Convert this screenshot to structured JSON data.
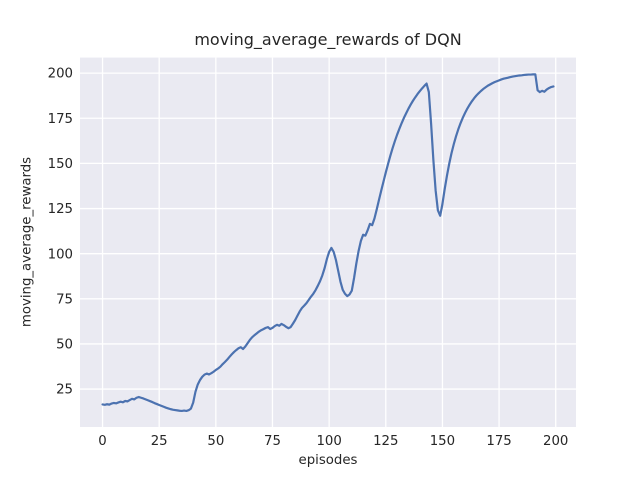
{
  "chart_data": {
    "type": "line",
    "title": "moving_average_rewards of DQN",
    "xlabel": "episodes",
    "ylabel": "moving_average_rewards",
    "grid": true,
    "legend": false,
    "axes_bg_color": "#eaeaf2",
    "grid_color": "#ffffff",
    "line_color": "#4c72b0",
    "text_color": "#262626",
    "xlim": [
      -9.95,
      208.95
    ],
    "ylim": [
      4.0,
      208.6
    ],
    "x_ticks": [
      0,
      25,
      50,
      75,
      100,
      125,
      150,
      175,
      200
    ],
    "y_ticks": [
      25,
      50,
      75,
      100,
      125,
      150,
      175,
      200
    ],
    "series": [
      {
        "name": "moving_average_rewards",
        "x_start": 0,
        "x_step": 1,
        "y": [
          16.5,
          16.3,
          16.6,
          16.4,
          17.0,
          17.3,
          17.1,
          17.6,
          18.0,
          17.7,
          18.4,
          18.2,
          18.9,
          19.6,
          19.3,
          20.2,
          20.6,
          20.2,
          19.8,
          19.3,
          18.8,
          18.3,
          17.8,
          17.2,
          16.7,
          16.2,
          15.7,
          15.2,
          14.7,
          14.3,
          13.9,
          13.6,
          13.4,
          13.2,
          13.0,
          12.9,
          13.1,
          12.9,
          13.3,
          14.2,
          17.5,
          23.5,
          27.5,
          30.0,
          31.8,
          33.0,
          33.6,
          33.1,
          33.8,
          34.6,
          35.6,
          36.4,
          37.4,
          38.8,
          40.0,
          41.3,
          42.8,
          44.2,
          45.5,
          46.6,
          47.6,
          48.2,
          47.2,
          48.6,
          50.4,
          52.2,
          53.7,
          54.8,
          55.8,
          56.8,
          57.6,
          58.2,
          58.9,
          59.3,
          58.3,
          58.9,
          59.9,
          60.6,
          60.1,
          61.1,
          60.4,
          59.5,
          58.7,
          59.3,
          61.2,
          63.2,
          65.6,
          68.0,
          69.9,
          71.2,
          72.6,
          74.4,
          76.2,
          77.8,
          79.8,
          82.2,
          84.8,
          88.0,
          92.0,
          97.0,
          101.0,
          103.2,
          101.0,
          96.5,
          90.5,
          84.5,
          80.0,
          77.8,
          76.5,
          77.4,
          79.5,
          86.5,
          94.5,
          101.5,
          107.0,
          110.5,
          110.0,
          113.0,
          116.5,
          115.8,
          119.5,
          124.5,
          129.8,
          135.0,
          140.0,
          145.0,
          149.7,
          154.2,
          158.4,
          162.3,
          165.9,
          169.2,
          172.3,
          175.2,
          177.8,
          180.3,
          182.6,
          184.7,
          186.6,
          188.4,
          190.0,
          191.5,
          192.9,
          194.2,
          189.5,
          172.0,
          152.0,
          135.0,
          124.0,
          121.0,
          127.5,
          135.8,
          143.2,
          149.8,
          155.6,
          160.6,
          165.0,
          168.9,
          172.3,
          175.3,
          178.0,
          180.4,
          182.5,
          184.4,
          186.1,
          187.6,
          188.9,
          190.1,
          191.2,
          192.1,
          193.0,
          193.7,
          194.4,
          195.0,
          195.5,
          196.0,
          196.5,
          196.9,
          197.2,
          197.5,
          197.8,
          198.1,
          198.3,
          198.5,
          198.7,
          198.8,
          199.0,
          199.1,
          199.2,
          199.2,
          199.3,
          199.3,
          190.5,
          189.5,
          190.2,
          189.7,
          190.9,
          191.7,
          192.3,
          192.6
        ]
      }
    ]
  }
}
